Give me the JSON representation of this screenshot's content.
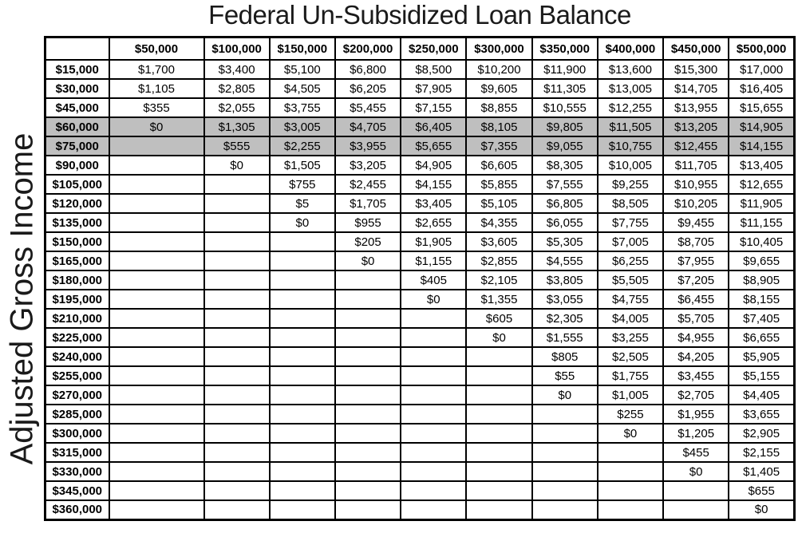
{
  "page": {
    "title": "Federal Un-Subsidized Loan Balance",
    "row_axis_label": "Adjusted Gross Income"
  },
  "colors": {
    "highlight_row_bg": "#BFBFBF",
    "grid_border": "#000000",
    "background": "#FFFFFF",
    "text": "#000000"
  },
  "chart_data": {
    "type": "table",
    "title": "Federal Un-Subsidized Loan Balance",
    "row_axis_label": "Adjusted Gross Income",
    "corner_header": "",
    "column_headers": [
      "$50,000",
      "$100,000",
      "$150,000",
      "$200,000",
      "$250,000",
      "$300,000",
      "$350,000",
      "$400,000",
      "$450,000",
      "$500,000"
    ],
    "rows": [
      {
        "label": "$15,000",
        "highlighted": false,
        "values": [
          "$1,700",
          "$3,400",
          "$5,100",
          "$6,800",
          "$8,500",
          "$10,200",
          "$11,900",
          "$13,600",
          "$15,300",
          "$17,000"
        ]
      },
      {
        "label": "$30,000",
        "highlighted": false,
        "values": [
          "$1,105",
          "$2,805",
          "$4,505",
          "$6,205",
          "$7,905",
          "$9,605",
          "$11,305",
          "$13,005",
          "$14,705",
          "$16,405"
        ]
      },
      {
        "label": "$45,000",
        "highlighted": false,
        "values": [
          "$355",
          "$2,055",
          "$3,755",
          "$5,455",
          "$7,155",
          "$8,855",
          "$10,555",
          "$12,255",
          "$13,955",
          "$15,655"
        ]
      },
      {
        "label": "$60,000",
        "highlighted": true,
        "values": [
          "$0",
          "$1,305",
          "$3,005",
          "$4,705",
          "$6,405",
          "$8,105",
          "$9,805",
          "$11,505",
          "$13,205",
          "$14,905"
        ]
      },
      {
        "label": "$75,000",
        "highlighted": true,
        "values": [
          "",
          "$555",
          "$2,255",
          "$3,955",
          "$5,655",
          "$7,355",
          "$9,055",
          "$10,755",
          "$12,455",
          "$14,155"
        ]
      },
      {
        "label": "$90,000",
        "highlighted": false,
        "values": [
          "",
          "$0",
          "$1,505",
          "$3,205",
          "$4,905",
          "$6,605",
          "$8,305",
          "$10,005",
          "$11,705",
          "$13,405"
        ]
      },
      {
        "label": "$105,000",
        "highlighted": false,
        "values": [
          "",
          "",
          "$755",
          "$2,455",
          "$4,155",
          "$5,855",
          "$7,555",
          "$9,255",
          "$10,955",
          "$12,655"
        ]
      },
      {
        "label": "$120,000",
        "highlighted": false,
        "values": [
          "",
          "",
          "$5",
          "$1,705",
          "$3,405",
          "$5,105",
          "$6,805",
          "$8,505",
          "$10,205",
          "$11,905"
        ]
      },
      {
        "label": "$135,000",
        "highlighted": false,
        "values": [
          "",
          "",
          "$0",
          "$955",
          "$2,655",
          "$4,355",
          "$6,055",
          "$7,755",
          "$9,455",
          "$11,155"
        ]
      },
      {
        "label": "$150,000",
        "highlighted": false,
        "values": [
          "",
          "",
          "",
          "$205",
          "$1,905",
          "$3,605",
          "$5,305",
          "$7,005",
          "$8,705",
          "$10,405"
        ]
      },
      {
        "label": "$165,000",
        "highlighted": false,
        "values": [
          "",
          "",
          "",
          "$0",
          "$1,155",
          "$2,855",
          "$4,555",
          "$6,255",
          "$7,955",
          "$9,655"
        ]
      },
      {
        "label": "$180,000",
        "highlighted": false,
        "values": [
          "",
          "",
          "",
          "",
          "$405",
          "$2,105",
          "$3,805",
          "$5,505",
          "$7,205",
          "$8,905"
        ]
      },
      {
        "label": "$195,000",
        "highlighted": false,
        "values": [
          "",
          "",
          "",
          "",
          "$0",
          "$1,355",
          "$3,055",
          "$4,755",
          "$6,455",
          "$8,155"
        ]
      },
      {
        "label": "$210,000",
        "highlighted": false,
        "values": [
          "",
          "",
          "",
          "",
          "",
          "$605",
          "$2,305",
          "$4,005",
          "$5,705",
          "$7,405"
        ]
      },
      {
        "label": "$225,000",
        "highlighted": false,
        "values": [
          "",
          "",
          "",
          "",
          "",
          "$0",
          "$1,555",
          "$3,255",
          "$4,955",
          "$6,655"
        ]
      },
      {
        "label": "$240,000",
        "highlighted": false,
        "values": [
          "",
          "",
          "",
          "",
          "",
          "",
          "$805",
          "$2,505",
          "$4,205",
          "$5,905"
        ]
      },
      {
        "label": "$255,000",
        "highlighted": false,
        "values": [
          "",
          "",
          "",
          "",
          "",
          "",
          "$55",
          "$1,755",
          "$3,455",
          "$5,155"
        ]
      },
      {
        "label": "$270,000",
        "highlighted": false,
        "values": [
          "",
          "",
          "",
          "",
          "",
          "",
          "$0",
          "$1,005",
          "$2,705",
          "$4,405"
        ]
      },
      {
        "label": "$285,000",
        "highlighted": false,
        "values": [
          "",
          "",
          "",
          "",
          "",
          "",
          "",
          "$255",
          "$1,955",
          "$3,655"
        ]
      },
      {
        "label": "$300,000",
        "highlighted": false,
        "values": [
          "",
          "",
          "",
          "",
          "",
          "",
          "",
          "$0",
          "$1,205",
          "$2,905"
        ]
      },
      {
        "label": "$315,000",
        "highlighted": false,
        "values": [
          "",
          "",
          "",
          "",
          "",
          "",
          "",
          "",
          "$455",
          "$2,155"
        ]
      },
      {
        "label": "$330,000",
        "highlighted": false,
        "values": [
          "",
          "",
          "",
          "",
          "",
          "",
          "",
          "",
          "$0",
          "$1,405"
        ]
      },
      {
        "label": "$345,000",
        "highlighted": false,
        "values": [
          "",
          "",
          "",
          "",
          "",
          "",
          "",
          "",
          "",
          "$655"
        ]
      },
      {
        "label": "$360,000",
        "highlighted": false,
        "values": [
          "",
          "",
          "",
          "",
          "",
          "",
          "",
          "",
          "",
          "$0"
        ]
      }
    ]
  }
}
